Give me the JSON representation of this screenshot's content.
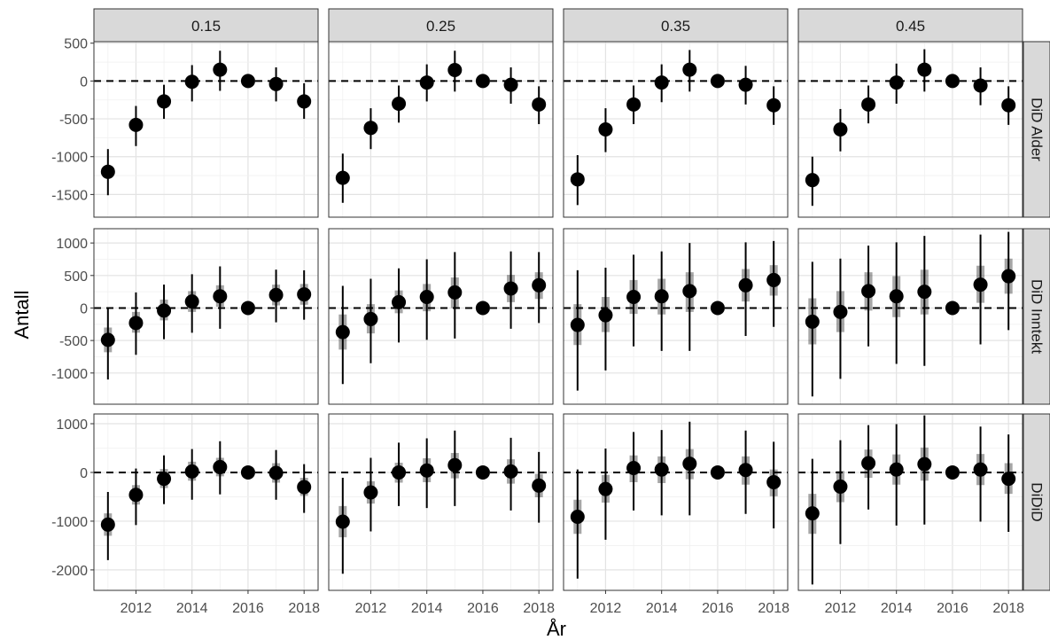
{
  "chart_data": {
    "type": "scatter",
    "subtype": "faceted point-range (coefficient plot)",
    "xlabel": "År",
    "ylabel": "Antall",
    "x_ticks": [
      2012,
      2014,
      2016,
      2018
    ],
    "x_range": [
      2010.5,
      2018.5
    ],
    "facet_columns": [
      "0.15",
      "0.25",
      "0.35",
      "0.45"
    ],
    "facet_rows": [
      {
        "label": "DiD Alder",
        "ylim": [
          -1800,
          520
        ],
        "y_ticks": [
          500,
          0,
          -500,
          -1000,
          -1500
        ]
      },
      {
        "label": "DiD Inntekt",
        "ylim": [
          -1480,
          1220
        ],
        "y_ticks": [
          1000,
          500,
          0,
          -500,
          -1000
        ]
      },
      {
        "label": "DiDiD",
        "ylim": [
          -2420,
          1200
        ],
        "y_ticks": [
          1000,
          0,
          -1000,
          -2000
        ]
      }
    ],
    "reference_line": 0,
    "grid": true,
    "panels": [
      {
        "row": 0,
        "col": 0,
        "points": [
          {
            "x": 2011,
            "y": -1200,
            "lo95": -1510,
            "hi95": -900
          },
          {
            "x": 2012,
            "y": -580,
            "lo95": -860,
            "hi95": -330
          },
          {
            "x": 2013,
            "y": -270,
            "lo95": -500,
            "hi95": -50
          },
          {
            "x": 2014,
            "y": -10,
            "lo95": -270,
            "hi95": 210
          },
          {
            "x": 2015,
            "y": 150,
            "lo95": -130,
            "hi95": 400
          },
          {
            "x": 2016,
            "y": 0,
            "lo95": 0,
            "hi95": 0
          },
          {
            "x": 2017,
            "y": -40,
            "lo95": -270,
            "hi95": 180
          },
          {
            "x": 2018,
            "y": -270,
            "lo95": -500,
            "hi95": -30
          }
        ]
      },
      {
        "row": 0,
        "col": 1,
        "points": [
          {
            "x": 2011,
            "y": -1280,
            "lo95": -1610,
            "hi95": -960
          },
          {
            "x": 2012,
            "y": -620,
            "lo95": -900,
            "hi95": -360
          },
          {
            "x": 2013,
            "y": -300,
            "lo95": -550,
            "hi95": -60
          },
          {
            "x": 2014,
            "y": -20,
            "lo95": -270,
            "hi95": 220
          },
          {
            "x": 2015,
            "y": 145,
            "lo95": -140,
            "hi95": 400
          },
          {
            "x": 2016,
            "y": 0,
            "lo95": 0,
            "hi95": 0
          },
          {
            "x": 2017,
            "y": -50,
            "lo95": -300,
            "hi95": 180
          },
          {
            "x": 2018,
            "y": -310,
            "lo95": -570,
            "hi95": -70
          }
        ]
      },
      {
        "row": 0,
        "col": 2,
        "points": [
          {
            "x": 2011,
            "y": -1300,
            "lo95": -1640,
            "hi95": -980
          },
          {
            "x": 2012,
            "y": -640,
            "lo95": -940,
            "hi95": -360
          },
          {
            "x": 2013,
            "y": -310,
            "lo95": -570,
            "hi95": -60
          },
          {
            "x": 2014,
            "y": -20,
            "lo95": -280,
            "hi95": 220
          },
          {
            "x": 2015,
            "y": 150,
            "lo95": -140,
            "hi95": 410
          },
          {
            "x": 2016,
            "y": 0,
            "lo95": 0,
            "hi95": 0
          },
          {
            "x": 2017,
            "y": -50,
            "lo95": -310,
            "hi95": 200
          },
          {
            "x": 2018,
            "y": -320,
            "lo95": -580,
            "hi95": -70
          }
        ]
      },
      {
        "row": 0,
        "col": 3,
        "points": [
          {
            "x": 2011,
            "y": -1310,
            "lo95": -1650,
            "hi95": -1000
          },
          {
            "x": 2012,
            "y": -640,
            "lo95": -930,
            "hi95": -370
          },
          {
            "x": 2013,
            "y": -310,
            "lo95": -560,
            "hi95": -60
          },
          {
            "x": 2014,
            "y": -20,
            "lo95": -300,
            "hi95": 230
          },
          {
            "x": 2015,
            "y": 150,
            "lo95": -140,
            "hi95": 420
          },
          {
            "x": 2016,
            "y": 0,
            "lo95": 0,
            "hi95": 0
          },
          {
            "x": 2017,
            "y": -60,
            "lo95": -320,
            "hi95": 180
          },
          {
            "x": 2018,
            "y": -320,
            "lo95": -580,
            "hi95": -70
          }
        ]
      },
      {
        "row": 1,
        "col": 0,
        "points": [
          {
            "x": 2011,
            "y": -490,
            "lo": -680,
            "hi": -300,
            "lo95": -1100,
            "hi95": 0
          },
          {
            "x": 2012,
            "y": -230,
            "lo": -380,
            "hi": -60,
            "lo95": -720,
            "hi95": 240
          },
          {
            "x": 2013,
            "y": -40,
            "lo": -190,
            "hi": 130,
            "lo95": -480,
            "hi95": 360
          },
          {
            "x": 2014,
            "y": 100,
            "lo": -60,
            "hi": 260,
            "lo95": -380,
            "hi95": 520
          },
          {
            "x": 2015,
            "y": 180,
            "lo": 20,
            "hi": 350,
            "lo95": -320,
            "hi95": 640
          },
          {
            "x": 2016,
            "y": 0,
            "lo": 0,
            "hi": 0,
            "lo95": 0,
            "hi95": 0
          },
          {
            "x": 2017,
            "y": 200,
            "lo": 40,
            "hi": 360,
            "lo95": -220,
            "hi95": 590
          },
          {
            "x": 2018,
            "y": 210,
            "lo": 50,
            "hi": 370,
            "lo95": -180,
            "hi95": 580
          }
        ]
      },
      {
        "row": 1,
        "col": 1,
        "points": [
          {
            "x": 2011,
            "y": -370,
            "lo": -640,
            "hi": -100,
            "lo95": -1170,
            "hi95": 340
          },
          {
            "x": 2012,
            "y": -170,
            "lo": -390,
            "hi": 60,
            "lo95": -850,
            "hi95": 450
          },
          {
            "x": 2013,
            "y": 90,
            "lo": -80,
            "hi": 270,
            "lo95": -530,
            "hi95": 610
          },
          {
            "x": 2014,
            "y": 170,
            "lo": -50,
            "hi": 370,
            "lo95": -490,
            "hi95": 750
          },
          {
            "x": 2015,
            "y": 240,
            "lo": 0,
            "hi": 470,
            "lo95": -470,
            "hi95": 860
          },
          {
            "x": 2016,
            "y": 0,
            "lo": 0,
            "hi": 0,
            "lo95": 0,
            "hi95": 0
          },
          {
            "x": 2017,
            "y": 300,
            "lo": 90,
            "hi": 510,
            "lo95": -320,
            "hi95": 870
          },
          {
            "x": 2018,
            "y": 350,
            "lo": 140,
            "hi": 550,
            "lo95": -230,
            "hi95": 860
          }
        ]
      },
      {
        "row": 1,
        "col": 2,
        "points": [
          {
            "x": 2011,
            "y": -260,
            "lo": -570,
            "hi": 60,
            "lo95": -1270,
            "hi95": 580
          },
          {
            "x": 2012,
            "y": -110,
            "lo": -370,
            "hi": 170,
            "lo95": -960,
            "hi95": 620
          },
          {
            "x": 2013,
            "y": 170,
            "lo": -90,
            "hi": 430,
            "lo95": -590,
            "hi95": 820
          },
          {
            "x": 2014,
            "y": 180,
            "lo": -100,
            "hi": 450,
            "lo95": -660,
            "hi95": 870
          },
          {
            "x": 2015,
            "y": 260,
            "lo": -60,
            "hi": 550,
            "lo95": -660,
            "hi95": 1000
          },
          {
            "x": 2016,
            "y": 0,
            "lo": 0,
            "hi": 0,
            "lo95": 0,
            "hi95": 0
          },
          {
            "x": 2017,
            "y": 350,
            "lo": 100,
            "hi": 600,
            "lo95": -430,
            "hi95": 1010
          },
          {
            "x": 2018,
            "y": 430,
            "lo": 190,
            "hi": 660,
            "lo95": -290,
            "hi95": 1030
          }
        ]
      },
      {
        "row": 1,
        "col": 3,
        "points": [
          {
            "x": 2011,
            "y": -210,
            "lo": -560,
            "hi": 150,
            "lo95": -1360,
            "hi95": 710
          },
          {
            "x": 2012,
            "y": -60,
            "lo": -370,
            "hi": 260,
            "lo95": -1090,
            "hi95": 760
          },
          {
            "x": 2013,
            "y": 260,
            "lo": -40,
            "hi": 550,
            "lo95": -590,
            "hi95": 960
          },
          {
            "x": 2014,
            "y": 180,
            "lo": -140,
            "hi": 490,
            "lo95": -860,
            "hi95": 1010
          },
          {
            "x": 2015,
            "y": 250,
            "lo": -100,
            "hi": 590,
            "lo95": -890,
            "hi95": 1110
          },
          {
            "x": 2016,
            "y": 0,
            "lo": 0,
            "hi": 0,
            "lo95": 0,
            "hi95": 0
          },
          {
            "x": 2017,
            "y": 360,
            "lo": 80,
            "hi": 650,
            "lo95": -560,
            "hi95": 1130
          },
          {
            "x": 2018,
            "y": 490,
            "lo": 220,
            "hi": 760,
            "lo95": -340,
            "hi95": 1170
          }
        ]
      },
      {
        "row": 2,
        "col": 0,
        "points": [
          {
            "x": 2011,
            "y": -1070,
            "lo": -1300,
            "hi": -840,
            "lo95": -1800,
            "hi95": -400
          },
          {
            "x": 2012,
            "y": -460,
            "lo": -660,
            "hi": -260,
            "lo95": -1080,
            "hi95": 80
          },
          {
            "x": 2013,
            "y": -130,
            "lo": -320,
            "hi": 70,
            "lo95": -650,
            "hi95": 350
          },
          {
            "x": 2014,
            "y": 20,
            "lo": -170,
            "hi": 220,
            "lo95": -560,
            "hi95": 480
          },
          {
            "x": 2015,
            "y": 110,
            "lo": -80,
            "hi": 300,
            "lo95": -450,
            "hi95": 640
          },
          {
            "x": 2016,
            "y": 0,
            "lo": 0,
            "hi": 0,
            "lo95": 0,
            "hi95": 0
          },
          {
            "x": 2017,
            "y": -10,
            "lo": -210,
            "hi": 190,
            "lo95": -560,
            "hi95": 460
          },
          {
            "x": 2018,
            "y": -300,
            "lo": -480,
            "hi": -110,
            "lo95": -830,
            "hi95": 170
          }
        ]
      },
      {
        "row": 2,
        "col": 1,
        "points": [
          {
            "x": 2011,
            "y": -1010,
            "lo": -1330,
            "hi": -690,
            "lo95": -2080,
            "hi95": -110
          },
          {
            "x": 2012,
            "y": -410,
            "lo": -640,
            "hi": -180,
            "lo95": -1210,
            "hi95": 300
          },
          {
            "x": 2013,
            "y": 0,
            "lo": -210,
            "hi": 200,
            "lo95": -690,
            "hi95": 610
          },
          {
            "x": 2014,
            "y": 40,
            "lo": -200,
            "hi": 290,
            "lo95": -730,
            "hi95": 700
          },
          {
            "x": 2015,
            "y": 150,
            "lo": -120,
            "hi": 400,
            "lo95": -690,
            "hi95": 860
          },
          {
            "x": 2016,
            "y": 0,
            "lo": 0,
            "hi": 0,
            "lo95": 0,
            "hi95": 0
          },
          {
            "x": 2017,
            "y": 20,
            "lo": -230,
            "hi": 270,
            "lo95": -780,
            "hi95": 710
          },
          {
            "x": 2018,
            "y": -270,
            "lo": -510,
            "hi": -30,
            "lo95": -1030,
            "hi95": 420
          }
        ]
      },
      {
        "row": 2,
        "col": 2,
        "points": [
          {
            "x": 2011,
            "y": -910,
            "lo": -1260,
            "hi": -560,
            "lo95": -2180,
            "hi95": 60
          },
          {
            "x": 2012,
            "y": -340,
            "lo": -620,
            "hi": -50,
            "lo95": -1380,
            "hi95": 490
          },
          {
            "x": 2013,
            "y": 90,
            "lo": -200,
            "hi": 350,
            "lo95": -780,
            "hi95": 830
          },
          {
            "x": 2014,
            "y": 60,
            "lo": -220,
            "hi": 330,
            "lo95": -880,
            "hi95": 870
          },
          {
            "x": 2015,
            "y": 180,
            "lo": -140,
            "hi": 480,
            "lo95": -880,
            "hi95": 1040
          },
          {
            "x": 2016,
            "y": 0,
            "lo": 0,
            "hi": 0,
            "lo95": 0,
            "hi95": 0
          },
          {
            "x": 2017,
            "y": 50,
            "lo": -250,
            "hi": 330,
            "lo95": -850,
            "hi95": 860
          },
          {
            "x": 2018,
            "y": -200,
            "lo": -490,
            "hi": 60,
            "lo95": -1150,
            "hi95": 630
          }
        ]
      },
      {
        "row": 2,
        "col": 3,
        "points": [
          {
            "x": 2011,
            "y": -840,
            "lo": -1260,
            "hi": -440,
            "lo95": -2300,
            "hi95": 280
          },
          {
            "x": 2012,
            "y": -290,
            "lo": -610,
            "hi": 30,
            "lo95": -1470,
            "hi95": 660
          },
          {
            "x": 2013,
            "y": 190,
            "lo": -110,
            "hi": 470,
            "lo95": -760,
            "hi95": 970
          },
          {
            "x": 2014,
            "y": 60,
            "lo": -250,
            "hi": 370,
            "lo95": -1090,
            "hi95": 990
          },
          {
            "x": 2015,
            "y": 170,
            "lo": -170,
            "hi": 510,
            "lo95": -1070,
            "hi95": 1170
          },
          {
            "x": 2016,
            "y": 0,
            "lo": 0,
            "hi": 0,
            "lo95": 0,
            "hi95": 0
          },
          {
            "x": 2017,
            "y": 60,
            "lo": -260,
            "hi": 380,
            "lo95": -1010,
            "hi95": 940
          },
          {
            "x": 2018,
            "y": -130,
            "lo": -440,
            "hi": 190,
            "lo95": -1220,
            "hi95": 780
          }
        ]
      }
    ]
  }
}
